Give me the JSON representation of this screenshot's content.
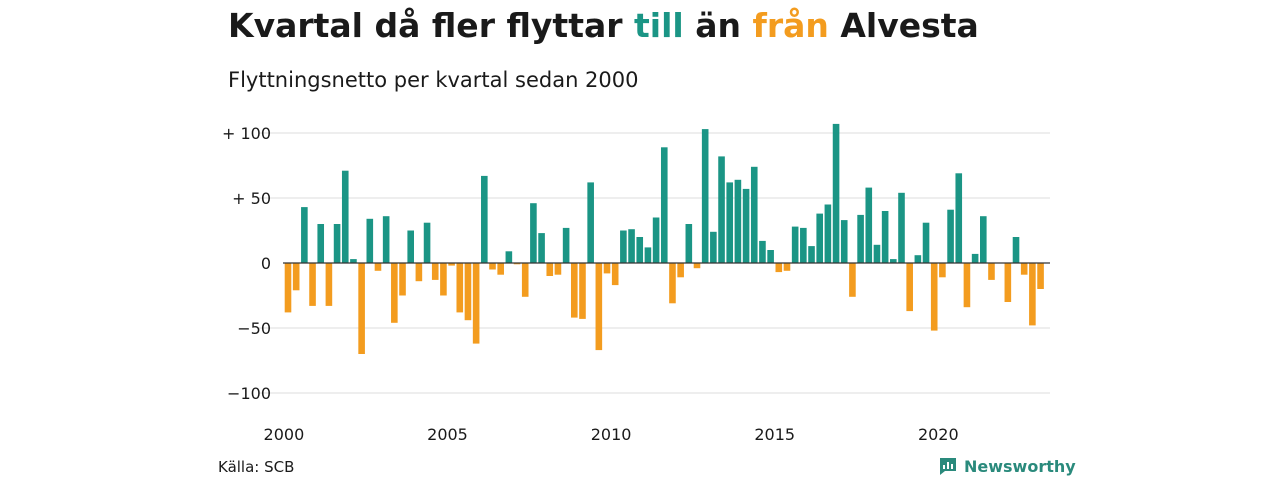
{
  "header": {
    "title_parts": [
      "Kvartal då fler flyttar ",
      "till",
      " än ",
      "från",
      " Alvesta"
    ],
    "subtitle": "Flyttningsnetto per kvartal sedan 2000"
  },
  "footer": {
    "source": "Källa: SCB",
    "brand": "Newsworthy"
  },
  "colors": {
    "positive": "#1b9585",
    "negative": "#f39c1f",
    "text": "#1a1a1a",
    "grid": "#dcdcdc",
    "brand": "#2a8a7c"
  },
  "chart_data": {
    "type": "bar",
    "title": "Kvartal då fler flyttar till än från Alvesta",
    "subtitle": "Flyttningsnetto per kvartal sedan 2000",
    "xlabel": "",
    "ylabel": "",
    "x_start": "2000Q1",
    "ylim": [
      -100,
      100
    ],
    "y_ticks": [
      100,
      50,
      0,
      -50,
      -100
    ],
    "y_tick_labels": [
      "+ 100",
      "+  50",
      "0",
      "−50",
      "−100"
    ],
    "x_tick_labels": [
      "2000",
      "2005",
      "2010",
      "2015",
      "2020"
    ],
    "grid": true,
    "values": [
      -38,
      -21,
      43,
      -33,
      30,
      -33,
      30,
      71,
      3,
      -70,
      34,
      -6,
      36,
      -46,
      -25,
      25,
      -14,
      31,
      -13,
      -25,
      -2,
      -38,
      -44,
      -62,
      67,
      -5,
      -9,
      9,
      -1,
      -26,
      46,
      23,
      -10,
      -9,
      27,
      -42,
      -43,
      62,
      -67,
      -8,
      -17,
      25,
      26,
      20,
      12,
      35,
      89,
      -31,
      -11,
      30,
      -4,
      103,
      24,
      82,
      62,
      64,
      57,
      74,
      17,
      10,
      -7,
      -6,
      28,
      27,
      13,
      38,
      45,
      107,
      33,
      -26,
      37,
      58,
      14,
      40,
      3,
      54,
      -37,
      6,
      31,
      -52,
      -11,
      41,
      69,
      -34,
      7,
      36,
      -13,
      0,
      -30,
      20,
      -9,
      -48,
      -20
    ]
  }
}
